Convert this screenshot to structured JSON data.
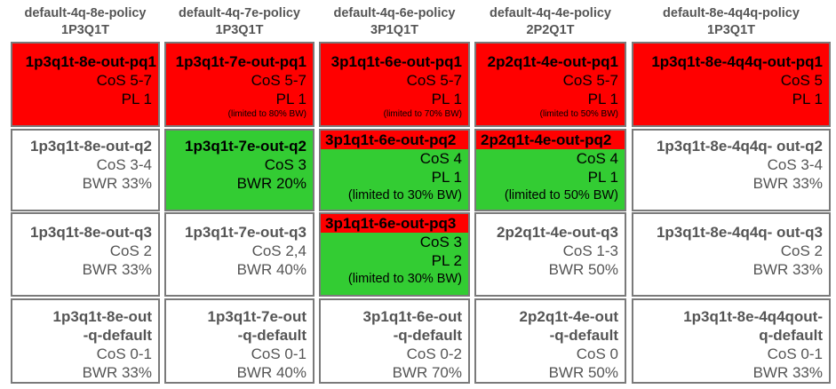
{
  "policies": [
    {
      "name": "default-4q-8e-policy",
      "type": "1P3Q1T",
      "cells": [
        {
          "lines": [
            "1p3q1t-8e-out-pq1",
            "CoS 5-7",
            "PL 1"
          ]
        },
        {
          "lines": [
            "1p3q1t-8e-out-q2",
            "CoS 3-4",
            "BWR 33%"
          ]
        },
        {
          "lines": [
            "1p3q1t-8e-out-q3",
            "CoS 2",
            "BWR 33%"
          ]
        },
        {
          "lines": [
            "1p3q1t-8e-out",
            "-q-default",
            "CoS 0-1",
            "BWR 33%"
          ]
        }
      ]
    },
    {
      "name": "default-4q-7e-policy",
      "type": "1P3Q1T",
      "cells": [
        {
          "lines": [
            "1p3q1t-7e-out-pq1",
            "CoS 5-7",
            "PL 1",
            "(limited to 80% BW)"
          ]
        },
        {
          "lines": [
            "1p3q1t-7e-out-q2",
            "CoS 3",
            "BWR 20%"
          ]
        },
        {
          "lines": [
            "1p3q1t-7e-out-q3",
            "CoS 2,4",
            "BWR 40%"
          ]
        },
        {
          "lines": [
            "1p3q1t-7e-out",
            "-q-default",
            "CoS 0-1",
            "BWR 40%"
          ]
        }
      ]
    },
    {
      "name": "default-4q-6e-policy",
      "type": "3P1Q1T",
      "cells": [
        {
          "lines": [
            "3p1q1t-6e-out-pq1",
            "CoS 5-7",
            "PL 1",
            "(limited to 70% BW)"
          ]
        },
        {
          "lines": [
            "3p1q1t-6e-out-pq2",
            "CoS 4",
            "PL 1",
            "(limited to 30% BW)"
          ]
        },
        {
          "lines": [
            "3p1q1t-6e-out-pq3",
            "CoS 3",
            "PL 2",
            "(limited to 30% BW)"
          ]
        },
        {
          "lines": [
            "3p1q1t-6e-out",
            "-q-default",
            "CoS 0-2",
            "BWR 70%"
          ]
        }
      ]
    },
    {
      "name": "default-4q-4e-policy",
      "type": "2P2Q1T",
      "cells": [
        {
          "lines": [
            "2p2q1t-4e-out-pq1",
            "CoS 5-7",
            "PL 1",
            "(limited to 50% BW)"
          ]
        },
        {
          "lines": [
            "2p2q1t-4e-out-pq2",
            "CoS 4",
            "PL 1",
            "(limited to 50% BW)"
          ]
        },
        {
          "lines": [
            "2p2q1t-4e-out-q3",
            "CoS 1-3",
            "BWR 50%"
          ]
        },
        {
          "lines": [
            "2p2q1t-4e-out",
            "-q-default",
            "CoS 0",
            "BWR 50%"
          ]
        }
      ]
    },
    {
      "name": "default-8e-4q4q-policy",
      "type": "1P3Q1T",
      "cells": [
        {
          "lines": [
            "1p3q1t-8e-4q4q-out-pq1",
            "CoS 5",
            "PL 1"
          ]
        },
        {
          "lines": [
            "1p3q1t-8e-4q4q- out-q2",
            "CoS 3-4",
            "BWR 33%"
          ]
        },
        {
          "lines": [
            "1p3q1t-8e-4q4q- out-q3",
            "CoS 2",
            "BWR 33%"
          ]
        },
        {
          "lines": [
            "1p3q1t-8e-4q4qout-",
            "q-default",
            "CoS 0-1",
            "BWR 33%"
          ]
        }
      ]
    }
  ],
  "colors": {
    "priority_red": "#ff0000",
    "highlight_green": "#33cc33",
    "border_gray": "#7a7a7a",
    "text_gray": "#555555"
  }
}
